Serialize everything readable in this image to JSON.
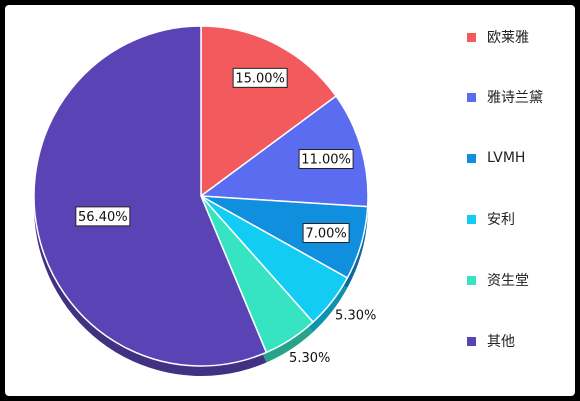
{
  "chart_data": {
    "type": "pie",
    "title": "",
    "categories": [
      "欧莱雅",
      "雅诗兰黛",
      "LVMH",
      "安利",
      "资生堂",
      "其他"
    ],
    "values": [
      15.0,
      11.0,
      7.0,
      5.3,
      5.3,
      56.4
    ],
    "labels": [
      "15.00%",
      "11.00%",
      "7.00%",
      "5.30%",
      "5.30%",
      "56.40%"
    ],
    "colors": [
      "#f25a5d",
      "#5a6df0",
      "#0f8fde",
      "#12ccf3",
      "#36e3c2",
      "#5a44b5"
    ],
    "start_angle_deg": 0,
    "direction": "clockwise",
    "legend_position": "right",
    "shape": "3d-tilted"
  }
}
